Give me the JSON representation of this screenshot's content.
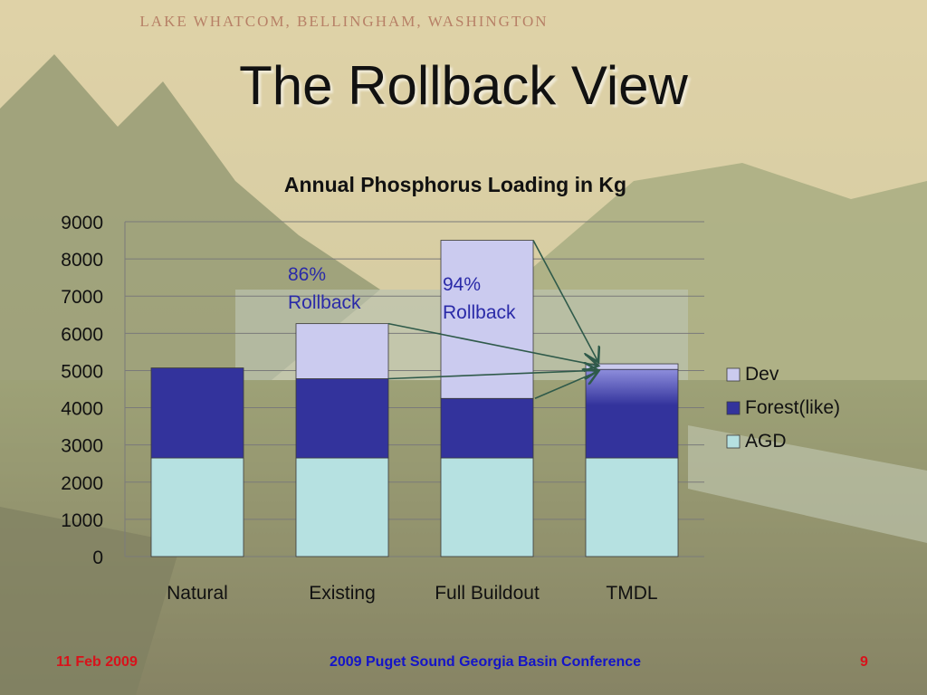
{
  "slide": {
    "photo_caption": "LAKE WHATCOM, BELLINGHAM, WASHINGTON",
    "title": "The Rollback View"
  },
  "footer": {
    "date": "11 Feb 2009",
    "conference": "2009 Puget Sound Georgia Basin Conference",
    "page_number": "9"
  },
  "chart_data": {
    "type": "bar",
    "stacked": true,
    "title": "Annual Phosphorus Loading in Kg",
    "xlabel": "",
    "ylabel": "",
    "categories": [
      "Natural",
      "Existing",
      "Full Buildout",
      "TMDL"
    ],
    "ylim": [
      0,
      9000
    ],
    "yticks": [
      0,
      1000,
      2000,
      3000,
      4000,
      5000,
      6000,
      7000,
      8000,
      9000
    ],
    "grid": true,
    "legend_position": "right",
    "series": [
      {
        "name": "AGD",
        "values": [
          2650,
          2650,
          2650,
          2650
        ],
        "color": "#b6e1e1"
      },
      {
        "name": "Forest(like)",
        "values": [
          2420,
          2130,
          1600,
          2380
        ],
        "color": "#33339c"
      },
      {
        "name": "Dev",
        "values": [
          0,
          1480,
          4250,
          150
        ],
        "color": "#cbcbef"
      }
    ],
    "annotations": [
      {
        "line1": "86%",
        "line2": "Rollback",
        "color": "#2a2aa8"
      },
      {
        "line1": "94%",
        "line2": "Rollback",
        "color": "#2a2aa8"
      }
    ]
  }
}
